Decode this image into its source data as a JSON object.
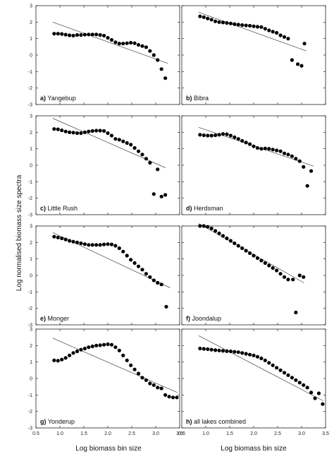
{
  "figure": {
    "ylabel": "Log normalised biomass size spectra",
    "xlabel": "Log biomass bin size"
  },
  "chart_data": [
    {
      "type": "scatter",
      "letter": "a)",
      "name": "Yangebup",
      "xlim": [
        0.5,
        3.5
      ],
      "ylim": [
        -3,
        3
      ],
      "yticks": [
        "-3",
        "-2",
        "-1",
        "0",
        "1",
        "2",
        "3"
      ],
      "xticks": [],
      "x": [
        0.88,
        0.96,
        1.04,
        1.12,
        1.2,
        1.28,
        1.36,
        1.44,
        1.52,
        1.6,
        1.68,
        1.76,
        1.84,
        1.92,
        2.0,
        2.08,
        2.16,
        2.24,
        2.32,
        2.4,
        2.48,
        2.56,
        2.64,
        2.72,
        2.8,
        2.88,
        2.96,
        3.04,
        3.12,
        3.2
      ],
      "y": [
        1.3,
        1.3,
        1.28,
        1.24,
        1.2,
        1.18,
        1.22,
        1.22,
        1.24,
        1.25,
        1.25,
        1.25,
        1.22,
        1.18,
        1.05,
        0.92,
        0.78,
        0.7,
        0.7,
        0.72,
        0.75,
        0.72,
        0.62,
        0.55,
        0.48,
        0.25,
        0.0,
        -0.3,
        -0.85,
        -1.4
      ],
      "fit": [
        [
          0.85,
          2.0
        ],
        [
          3.25,
          -0.5
        ]
      ]
    },
    {
      "type": "scatter",
      "letter": "b)",
      "name": "Bibra",
      "xlim": [
        0.5,
        3.5
      ],
      "ylim": [
        -3,
        3
      ],
      "yticks": [],
      "xticks": [],
      "x": [
        0.88,
        0.96,
        1.04,
        1.12,
        1.2,
        1.28,
        1.36,
        1.44,
        1.52,
        1.6,
        1.68,
        1.76,
        1.84,
        1.92,
        2.0,
        2.08,
        2.16,
        2.24,
        2.32,
        2.4,
        2.48,
        2.56,
        2.64,
        2.72,
        2.8,
        2.92,
        3.0,
        3.06
      ],
      "y": [
        2.35,
        2.3,
        2.22,
        2.15,
        2.05,
        2.0,
        1.98,
        1.95,
        1.92,
        1.88,
        1.85,
        1.82,
        1.8,
        1.78,
        1.75,
        1.72,
        1.7,
        1.6,
        1.5,
        1.42,
        1.35,
        1.2,
        1.1,
        1.0,
        -0.3,
        -0.55,
        -0.65,
        0.7
      ],
      "fit": [
        [
          0.85,
          2.6
        ],
        [
          3.1,
          0.25
        ]
      ]
    },
    {
      "type": "scatter",
      "letter": "c)",
      "name": "Little Rush",
      "xlim": [
        0.5,
        3.5
      ],
      "ylim": [
        -3,
        3
      ],
      "yticks": [
        "-3",
        "-2",
        "-1",
        "0",
        "1",
        "2",
        "3"
      ],
      "xticks": [],
      "x": [
        0.88,
        0.96,
        1.04,
        1.12,
        1.2,
        1.28,
        1.36,
        1.44,
        1.52,
        1.6,
        1.68,
        1.76,
        1.84,
        1.92,
        2.0,
        2.08,
        2.16,
        2.24,
        2.32,
        2.4,
        2.48,
        2.56,
        2.64,
        2.72,
        2.8,
        2.88,
        2.96,
        3.04,
        3.12,
        3.2
      ],
      "y": [
        2.2,
        2.18,
        2.12,
        2.05,
        2.0,
        1.98,
        1.95,
        1.95,
        2.0,
        2.05,
        2.08,
        2.1,
        2.1,
        2.08,
        1.95,
        1.8,
        1.6,
        1.55,
        1.45,
        1.35,
        1.25,
        1.05,
        0.85,
        0.65,
        0.4,
        0.15,
        -1.75,
        -0.25,
        -1.9,
        -1.8
      ],
      "fit": [
        [
          0.85,
          2.85
        ],
        [
          3.2,
          -0.15
        ]
      ]
    },
    {
      "type": "scatter",
      "letter": "d)",
      "name": "Herdsman",
      "xlim": [
        0.5,
        3.5
      ],
      "ylim": [
        -3,
        3
      ],
      "yticks": [],
      "xticks": [],
      "x": [
        0.88,
        0.96,
        1.04,
        1.12,
        1.2,
        1.28,
        1.36,
        1.44,
        1.52,
        1.6,
        1.68,
        1.76,
        1.84,
        1.92,
        2.0,
        2.08,
        2.16,
        2.24,
        2.32,
        2.4,
        2.48,
        2.56,
        2.64,
        2.72,
        2.8,
        2.88,
        2.96,
        3.04,
        3.12,
        3.2
      ],
      "y": [
        1.85,
        1.82,
        1.8,
        1.8,
        1.82,
        1.85,
        1.9,
        1.88,
        1.8,
        1.7,
        1.6,
        1.48,
        1.38,
        1.28,
        1.15,
        1.05,
        1.0,
        1.02,
        1.0,
        0.95,
        0.9,
        0.85,
        0.72,
        0.65,
        0.55,
        0.4,
        0.25,
        -0.1,
        -1.25,
        -0.35
      ],
      "fit": [
        [
          0.85,
          2.3
        ],
        [
          3.25,
          -0.05
        ]
      ]
    },
    {
      "type": "scatter",
      "letter": "e)",
      "name": "Monger",
      "xlim": [
        0.5,
        3.5
      ],
      "ylim": [
        -3,
        3
      ],
      "yticks": [
        "-3",
        "-2",
        "-1",
        "0",
        "1",
        "2",
        "3"
      ],
      "xticks": [],
      "x": [
        0.88,
        0.96,
        1.04,
        1.12,
        1.2,
        1.28,
        1.36,
        1.44,
        1.52,
        1.6,
        1.68,
        1.76,
        1.84,
        1.92,
        2.0,
        2.08,
        2.16,
        2.24,
        2.32,
        2.4,
        2.48,
        2.56,
        2.64,
        2.72,
        2.8,
        2.88,
        2.96,
        3.04,
        3.12,
        3.22
      ],
      "y": [
        2.35,
        2.3,
        2.25,
        2.18,
        2.1,
        2.05,
        2.0,
        1.95,
        1.9,
        1.85,
        1.85,
        1.85,
        1.85,
        1.88,
        1.9,
        1.88,
        1.8,
        1.65,
        1.45,
        1.2,
        0.95,
        0.75,
        0.55,
        0.35,
        0.1,
        -0.1,
        -0.3,
        -0.45,
        -0.55,
        -1.9
      ],
      "fit": [
        [
          0.85,
          2.6
        ],
        [
          3.3,
          -0.75
        ]
      ]
    },
    {
      "type": "scatter",
      "letter": "f)",
      "name": "Joondalup",
      "xlim": [
        0.5,
        3.5
      ],
      "ylim": [
        -3,
        3
      ],
      "yticks": [],
      "xticks": [],
      "x": [
        0.88,
        0.96,
        1.04,
        1.12,
        1.2,
        1.28,
        1.36,
        1.44,
        1.52,
        1.6,
        1.68,
        1.76,
        1.84,
        1.92,
        2.0,
        2.08,
        2.16,
        2.24,
        2.32,
        2.4,
        2.48,
        2.56,
        2.64,
        2.72,
        2.82,
        2.88,
        2.96,
        3.04
      ],
      "y": [
        3.0,
        3.0,
        2.95,
        2.85,
        2.7,
        2.55,
        2.4,
        2.25,
        2.1,
        1.95,
        1.8,
        1.65,
        1.5,
        1.35,
        1.2,
        1.05,
        0.9,
        0.75,
        0.6,
        0.45,
        0.3,
        0.1,
        -0.1,
        -0.25,
        -0.25,
        -2.25,
        0.0,
        -0.1
      ],
      "fit": [
        [
          0.85,
          3.15
        ],
        [
          3.05,
          -0.45
        ]
      ]
    },
    {
      "type": "scatter",
      "letter": "g)",
      "name": "Yonderup",
      "xlim": [
        0.5,
        3.5
      ],
      "ylim": [
        -3,
        3
      ],
      "yticks": [
        "-3",
        "-2",
        "-1",
        "0",
        "1",
        "2",
        "3"
      ],
      "xticks": [
        "0.5",
        "1.0",
        "1.5",
        "2.0",
        "2.5",
        "3.0",
        "3.5"
      ],
      "x": [
        0.88,
        0.96,
        1.04,
        1.12,
        1.2,
        1.28,
        1.36,
        1.44,
        1.52,
        1.6,
        1.68,
        1.76,
        1.84,
        1.92,
        2.0,
        2.08,
        2.16,
        2.24,
        2.32,
        2.4,
        2.48,
        2.56,
        2.64,
        2.72,
        2.8,
        2.88,
        2.96,
        3.04,
        3.12,
        3.2,
        3.28,
        3.36,
        3.44
      ],
      "y": [
        1.1,
        1.08,
        1.15,
        1.25,
        1.4,
        1.55,
        1.65,
        1.75,
        1.82,
        1.9,
        1.95,
        2.0,
        2.02,
        2.05,
        2.08,
        2.05,
        1.9,
        1.7,
        1.4,
        1.1,
        0.8,
        0.55,
        0.3,
        0.05,
        -0.1,
        -0.3,
        -0.4,
        -0.55,
        -0.6,
        -1.0,
        -1.1,
        -1.15,
        -1.15
      ],
      "fit": [
        [
          0.85,
          2.45
        ],
        [
          3.45,
          -0.85
        ]
      ]
    },
    {
      "type": "scatter",
      "letter": "h)",
      "name": "all lakes combined",
      "xlim": [
        0.5,
        3.5
      ],
      "ylim": [
        -3,
        3
      ],
      "yticks": [],
      "xticks": [
        "0.5",
        "1.0",
        "1.5",
        "2.0",
        "2.5",
        "3.0",
        "3.5"
      ],
      "x": [
        0.88,
        0.96,
        1.04,
        1.12,
        1.2,
        1.28,
        1.36,
        1.44,
        1.52,
        1.6,
        1.68,
        1.76,
        1.84,
        1.92,
        2.0,
        2.08,
        2.16,
        2.24,
        2.32,
        2.4,
        2.48,
        2.56,
        2.64,
        2.72,
        2.8,
        2.88,
        2.96,
        3.04,
        3.12,
        3.2,
        3.28,
        3.36,
        3.44
      ],
      "y": [
        1.82,
        1.8,
        1.78,
        1.75,
        1.72,
        1.7,
        1.68,
        1.66,
        1.65,
        1.62,
        1.6,
        1.55,
        1.5,
        1.45,
        1.4,
        1.32,
        1.22,
        1.1,
        0.95,
        0.8,
        0.65,
        0.5,
        0.35,
        0.2,
        0.05,
        -0.1,
        -0.25,
        -0.4,
        -0.55,
        -0.85,
        -1.2,
        -0.9,
        -1.55
      ],
      "fit": [
        [
          0.85,
          2.6
        ],
        [
          3.45,
          -1.35
        ]
      ]
    }
  ]
}
